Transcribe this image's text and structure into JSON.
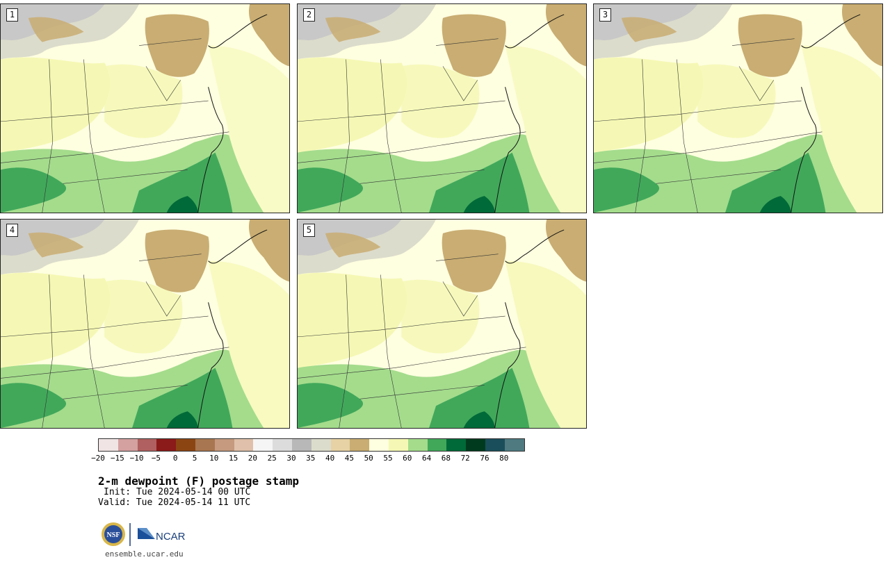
{
  "panels": [
    {
      "label": "1"
    },
    {
      "label": "2"
    },
    {
      "label": "3"
    },
    {
      "label": "4"
    },
    {
      "label": "5"
    }
  ],
  "colorbar": {
    "colors": [
      "#f0e4e4",
      "#d4a0a0",
      "#b06060",
      "#8b1a1a",
      "#8b4513",
      "#a87650",
      "#c59a7e",
      "#e0c0aa",
      "#f5f5f5",
      "#dcdcdc",
      "#b8b8b8",
      "#dcdccc",
      "#e6d2a4",
      "#c9ad72",
      "#fefee0",
      "#f5f8b4",
      "#a4dc8c",
      "#41a85a",
      "#006a38",
      "#003a1e",
      "#1a4e5a",
      "#4e7a80"
    ],
    "ticks": [
      "−20",
      "−15",
      "−10",
      "−5",
      "0",
      "5",
      "10",
      "15",
      "20",
      "25",
      "30",
      "35",
      "40",
      "45",
      "50",
      "55",
      "60",
      "64",
      "68",
      "72",
      "76",
      "80"
    ]
  },
  "title": "2-m dewpoint (F) postage stamp",
  "init": "Init: Tue 2024-05-14 00 UTC",
  "valid": "Valid: Tue 2024-05-14 11 UTC",
  "logo": {
    "nsf": "NSF",
    "ncar": "NCAR"
  },
  "site": "ensemble.ucar.edu"
}
